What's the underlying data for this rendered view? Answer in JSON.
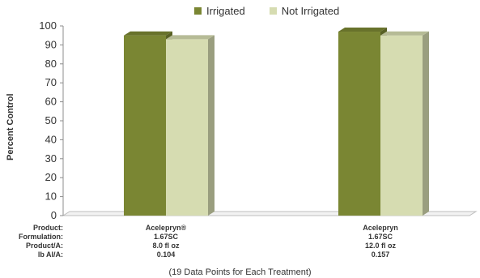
{
  "chart_data": {
    "type": "bar",
    "categories": [
      "Acelepryn®",
      "Acelepryn"
    ],
    "series": [
      {
        "name": "Irrigated",
        "values": [
          95,
          97
        ],
        "color": "#7a8633"
      },
      {
        "name": "Not Irrigated",
        "values": [
          93,
          95
        ],
        "color": "#d6dcb1"
      }
    ],
    "ylabel": "Percent Control",
    "ylim": [
      0,
      100
    ],
    "yticks": [
      0,
      10,
      20,
      30,
      40,
      50,
      60,
      70,
      80,
      90,
      100
    ],
    "grid": false,
    "legend_position": "top-center",
    "style": "3d-bar"
  },
  "table": {
    "row_labels": [
      "Product:",
      "Formulation:",
      "Product/A:",
      "lb AI/A:"
    ],
    "columns": [
      [
        "Acelepryn®",
        "1.67SC",
        "8.0 fl oz",
        "0.104"
      ],
      [
        "Acelepryn",
        "1.67SC",
        "12.0 fl oz",
        "0.157"
      ]
    ]
  },
  "footnote": "(19 Data Points for Each Treatment)"
}
